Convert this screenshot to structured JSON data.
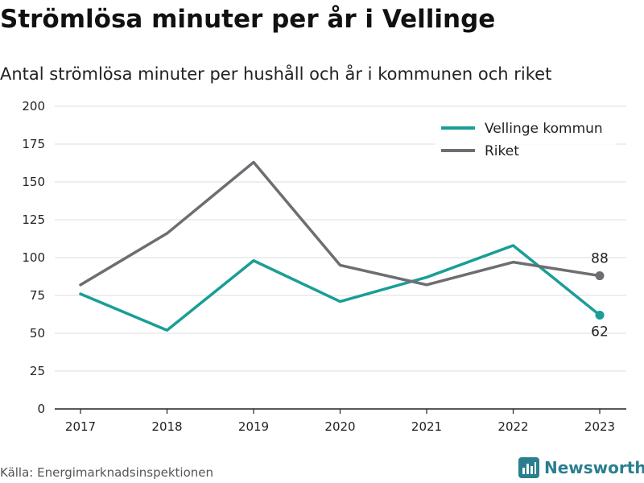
{
  "title": "Strömlösa minuter per år i Vellinge",
  "subtitle": "Antal strömlösa minuter per hushåll och år i kommunen och riket",
  "source": "Källa: Energimarknadsinspektionen",
  "brand": {
    "name": "Newsworthy",
    "icon": "bar-chart-logo-icon",
    "color": "#2a7f8f"
  },
  "chart_data": {
    "type": "line",
    "x": [
      2017,
      2018,
      2019,
      2020,
      2021,
      2022,
      2023
    ],
    "ylim": [
      0,
      200
    ],
    "yticks": [
      0,
      25,
      50,
      75,
      100,
      125,
      150,
      175,
      200
    ],
    "grid": true,
    "legend_position": "top-right",
    "series": [
      {
        "name": "Vellinge kommun",
        "color": "#1a9e96",
        "values": [
          76,
          52,
          98,
          71,
          87,
          108,
          62
        ],
        "end_label": "62"
      },
      {
        "name": "Riket",
        "color": "#6e6d72",
        "values": [
          82,
          116,
          163,
          95,
          82,
          97,
          88
        ],
        "end_label": "88"
      }
    ]
  }
}
